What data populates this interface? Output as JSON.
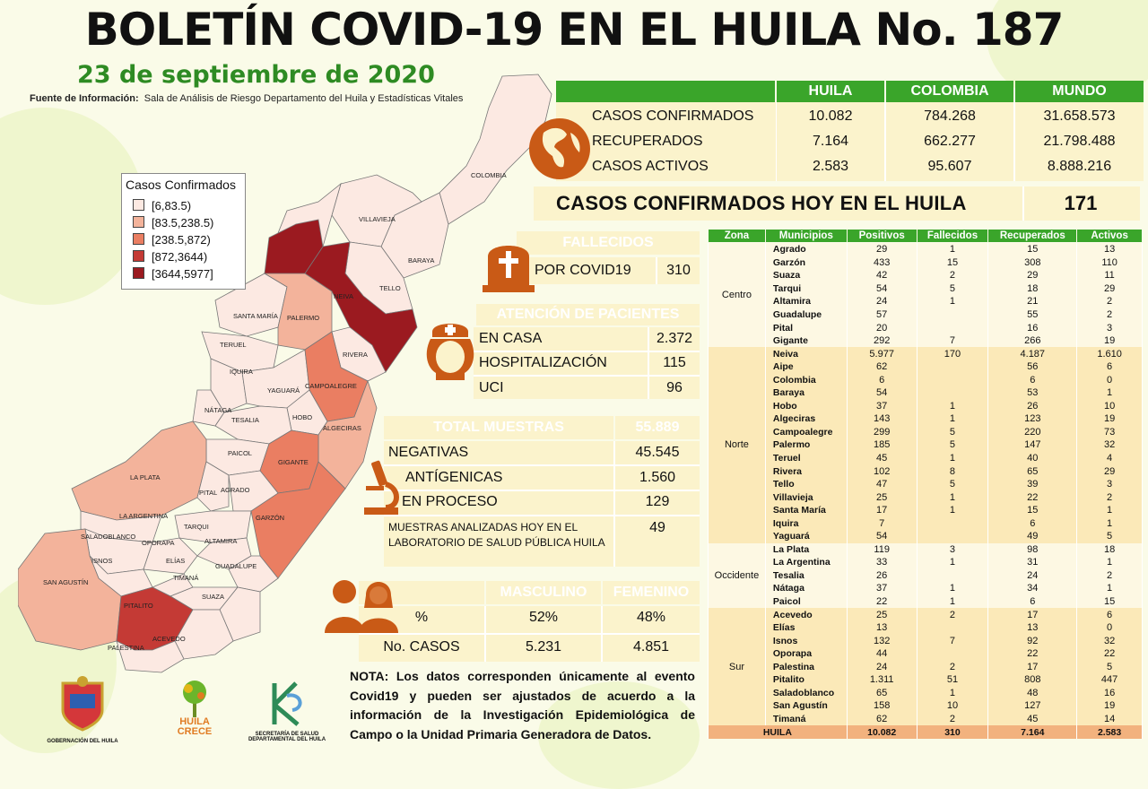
{
  "header": {
    "title": "BOLETÍN COVID-19 EN EL HUILA No. 187",
    "date": "23 de septiembre de 2020",
    "source_label": "Fuente de Información:",
    "source_text": "Sala de Análisis de Riesgo Departamento del Huila y Estadísticas Vitales"
  },
  "colors": {
    "green": "#3aa52a",
    "brown": "#c95a16",
    "cream": "#fbf3cc",
    "title_green": "#2e8b23"
  },
  "world_table": {
    "columns": [
      "HUILA",
      "COLOMBIA",
      "MUNDO"
    ],
    "rows": [
      {
        "label": "CASOS CONFIRMADOS",
        "values": [
          "10.082",
          "784.268",
          "31.658.573"
        ]
      },
      {
        "label": "RECUPERADOS",
        "values": [
          "7.164",
          "662.277",
          "21.798.488"
        ]
      },
      {
        "label": "CASOS ACTIVOS",
        "values": [
          "2.583",
          "95.607",
          "8.888.216"
        ]
      }
    ],
    "icon": "globe-icon"
  },
  "today": {
    "label": "CASOS CONFIRMADOS  HOY EN EL HUILA",
    "value": "171"
  },
  "fallecidos": {
    "title": "FALLECIDOS",
    "label": "POR COVID19",
    "value": "310",
    "icon": "tombstone-icon"
  },
  "atencion": {
    "title": "ATENCIÓN DE PACIENTES",
    "icon": "nurse-icon",
    "rows": [
      {
        "label": "EN CASA",
        "value": "2.372"
      },
      {
        "label": "HOSPITALIZACIÓN",
        "value": "115"
      },
      {
        "label": "UCI",
        "value": "96"
      }
    ]
  },
  "muestras": {
    "title": "TOTAL MUESTRAS",
    "total": "55.889",
    "icon": "microscope-icon",
    "rows": [
      {
        "label": "NEGATIVAS",
        "value": "45.545"
      },
      {
        "label": "ANTÍGENICAS",
        "value": "1.560"
      },
      {
        "label": "EN PROCESO",
        "value": "129"
      }
    ],
    "lab_label": "MUESTRAS ANALIZADAS HOY EN EL LABORATORIO DE SALUD PÚBLICA HUILA",
    "lab_value": "49"
  },
  "genero": {
    "icon": "people-icon",
    "col_m": "MASCULINO",
    "col_f": "FEMENINO",
    "rows": [
      {
        "label": "%",
        "m": "52%",
        "f": "48%"
      },
      {
        "label": "No. CASOS",
        "m": "5.231",
        "f": "4.851"
      }
    ]
  },
  "nota": {
    "bold": "NOTA:",
    "text": " Los datos corresponden únicamente al evento Covid19 y pueden ser ajustados de acuerdo a la información de la Investigación Epidemiológica de Campo o la Unidad Primaria Generadora de Datos."
  },
  "legend": {
    "title": "Casos Confirmados",
    "items": [
      {
        "label": "[6,83.5)",
        "color": "#fce9e2"
      },
      {
        "label": "[83.5,238.5)",
        "color": "#f3b39b"
      },
      {
        "label": "[238.5,872)",
        "color": "#ea7e62"
      },
      {
        "label": "[872,3644)",
        "color": "#c43a35"
      },
      {
        "label": "[3644,5977]",
        "color": "#9b1a20"
      }
    ]
  },
  "map_labels": [
    "COLOMBIA",
    "VILLAVIEJA",
    "BARAYA",
    "TELLO",
    "NEIVA",
    "SANTA MARÍA",
    "PALERMO",
    "TERUEL",
    "RIVERA",
    "IQUIRA",
    "YAGUARÁ",
    "CAMPOALEGRE",
    "NÁTAGA",
    "TESALIA",
    "HOBO",
    "ALGECIRAS",
    "PAICOL",
    "GIGANTE",
    "LA PLATA",
    "PITAL",
    "AGRADO",
    "LA ARGENTINA",
    "TARQUI",
    "GARZÓN",
    "SALADOBLANCO",
    "OPORAPA",
    "ALTAMIRA",
    "ISNOS",
    "ELÍAS",
    "GUADALUPE",
    "SAN AGUSTÍN",
    "TIMANÁ",
    "SUAZA",
    "PITALITO",
    "ACEVEDO",
    "PALESTINA"
  ],
  "logos": [
    {
      "label": "GOBERNACIÓN DEL HUILA",
      "icon": "coat-of-arms-icon"
    },
    {
      "label": "HUILA CRECE",
      "icon": "tree-logo-icon"
    },
    {
      "label": "SECRETARÍA DE SALUD DEPARTAMENTAL DEL HUILA",
      "icon": "health-logo-icon"
    }
  ],
  "municipios": {
    "headers": [
      "Zona",
      "Municipios",
      "Positivos",
      "Fallecidos",
      "Recuperados",
      "Activos"
    ],
    "zones": [
      {
        "name": "Centro",
        "rows": [
          [
            "Agrado",
            "29",
            "1",
            "15",
            "13"
          ],
          [
            "Garzón",
            "433",
            "15",
            "308",
            "110"
          ],
          [
            "Suaza",
            "42",
            "2",
            "29",
            "11"
          ],
          [
            "Tarqui",
            "54",
            "5",
            "18",
            "29"
          ],
          [
            "Altamira",
            "24",
            "1",
            "21",
            "2"
          ],
          [
            "Guadalupe",
            "57",
            "",
            "55",
            "2"
          ],
          [
            "Pital",
            "20",
            "",
            "16",
            "3"
          ],
          [
            "Gigante",
            "292",
            "7",
            "266",
            "19"
          ]
        ]
      },
      {
        "name": "Norte",
        "rows": [
          [
            "Neiva",
            "5.977",
            "170",
            "4.187",
            "1.610"
          ],
          [
            "Aipe",
            "62",
            "",
            "56",
            "6"
          ],
          [
            "Colombia",
            "6",
            "",
            "6",
            "0"
          ],
          [
            "Baraya",
            "54",
            "",
            "53",
            "1"
          ],
          [
            "Hobo",
            "37",
            "1",
            "26",
            "10"
          ],
          [
            "Algeciras",
            "143",
            "1",
            "123",
            "19"
          ],
          [
            "Campoalegre",
            "299",
            "5",
            "220",
            "73"
          ],
          [
            "Palermo",
            "185",
            "5",
            "147",
            "32"
          ],
          [
            "Teruel",
            "45",
            "1",
            "40",
            "4"
          ],
          [
            "Rivera",
            "102",
            "8",
            "65",
            "29"
          ],
          [
            "Tello",
            "47",
            "5",
            "39",
            "3"
          ],
          [
            "Villavieja",
            "25",
            "1",
            "22",
            "2"
          ],
          [
            "Santa María",
            "17",
            "1",
            "15",
            "1"
          ],
          [
            "Iquira",
            "7",
            "",
            "6",
            "1"
          ],
          [
            "Yaguará",
            "54",
            "",
            "49",
            "5"
          ]
        ]
      },
      {
        "name": "Occidente",
        "rows": [
          [
            "La Plata",
            "119",
            "3",
            "98",
            "18"
          ],
          [
            "La Argentina",
            "33",
            "1",
            "31",
            "1"
          ],
          [
            "Tesalia",
            "26",
            "",
            "24",
            "2"
          ],
          [
            "Nátaga",
            "37",
            "1",
            "34",
            "1"
          ],
          [
            "Paicol",
            "22",
            "1",
            "6",
            "15"
          ]
        ]
      },
      {
        "name": "Sur",
        "rows": [
          [
            "Acevedo",
            "25",
            "2",
            "17",
            "6"
          ],
          [
            "Elías",
            "13",
            "",
            "13",
            "0"
          ],
          [
            "Isnos",
            "132",
            "7",
            "92",
            "32"
          ],
          [
            "Oporapa",
            "44",
            "",
            "22",
            "22"
          ],
          [
            "Palestina",
            "24",
            "2",
            "17",
            "5"
          ],
          [
            "Pitalito",
            "1.311",
            "51",
            "808",
            "447"
          ],
          [
            "Saladoblanco",
            "65",
            "1",
            "48",
            "16"
          ],
          [
            "San Agustín",
            "158",
            "10",
            "127",
            "19"
          ],
          [
            "Timaná",
            "62",
            "2",
            "45",
            "14"
          ]
        ]
      }
    ],
    "total": [
      "HUILA",
      "10.082",
      "310",
      "7.164",
      "2.583"
    ]
  }
}
